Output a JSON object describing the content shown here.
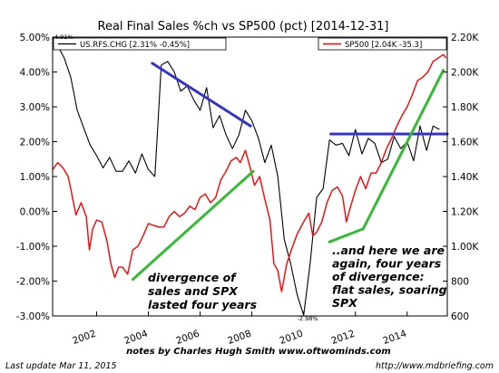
{
  "chart_data": {
    "type": "line",
    "title": "Real Final Sales %ch vs SP500 (pct) [2014-12-31]",
    "xlabel": "",
    "ylabel": "",
    "xlim": [
      2000.3,
      2015.55
    ],
    "x_ticks": [
      "2002",
      "2004",
      "2006",
      "2008",
      "2010",
      "2012",
      "2014"
    ],
    "y_left": {
      "ylim": [
        -3.0,
        5.0
      ],
      "ticks": [
        "-3.00%",
        "-2.00%",
        "-1.00%",
        "0.00%",
        "1.00%",
        "2.00%",
        "3.00%",
        "4.00%",
        "5.00%"
      ]
    },
    "y_right": {
      "ylim": [
        600,
        2200
      ],
      "ticks": [
        "600",
        "800",
        "1.00K",
        "1.20K",
        "1.40K",
        "1.60K",
        "1.80K",
        "2.00K",
        "2.20K"
      ]
    },
    "legend_left": {
      "label": "US.RFS.CHG [2.31% -0.45%]",
      "color": "#000000",
      "placement": "top-left"
    },
    "legend_right": {
      "label": "SP500 [2.04K -35.3]",
      "color": "#ff0000",
      "placement": "top-right"
    },
    "series": [
      {
        "name": "US.RFS.CHG",
        "axis": "left",
        "color": "#000000",
        "x": [
          2000.3,
          2000.5,
          2000.75,
          2001.0,
          2001.25,
          2001.5,
          2001.75,
          2002.0,
          2002.25,
          2002.5,
          2002.75,
          2003.0,
          2003.25,
          2003.5,
          2003.75,
          2004.0,
          2004.25,
          2004.5,
          2004.75,
          2005.0,
          2005.25,
          2005.5,
          2005.75,
          2006.0,
          2006.25,
          2006.5,
          2006.75,
          2007.0,
          2007.25,
          2007.5,
          2007.75,
          2008.0,
          2008.25,
          2008.5,
          2008.75,
          2009.0,
          2009.25,
          2009.5,
          2009.75,
          2010.0,
          2010.25,
          2010.5,
          2010.75,
          2011.0,
          2011.25,
          2011.5,
          2011.75,
          2012.0,
          2012.25,
          2012.5,
          2012.75,
          2013.0,
          2013.25,
          2013.5,
          2013.75,
          2014.0,
          2014.25,
          2014.5,
          2014.75,
          2015.0,
          2015.25
        ],
        "values": [
          5.0,
          4.75,
          4.4,
          3.85,
          2.9,
          2.4,
          1.9,
          1.6,
          1.25,
          1.55,
          1.15,
          1.15,
          1.45,
          1.1,
          1.65,
          1.2,
          1.0,
          4.2,
          4.3,
          4.0,
          3.45,
          3.6,
          3.2,
          2.9,
          3.55,
          2.4,
          2.75,
          2.2,
          1.8,
          2.2,
          2.9,
          2.6,
          2.1,
          1.4,
          1.9,
          1.0,
          -0.8,
          -1.5,
          -2.4,
          -2.98,
          -1.5,
          0.4,
          0.65,
          2.05,
          1.9,
          1.95,
          1.6,
          2.35,
          1.65,
          2.1,
          1.95,
          1.4,
          1.5,
          2.15,
          1.8,
          2.0,
          1.45,
          2.45,
          1.75,
          2.45,
          2.35
        ]
      },
      {
        "name": "SP500",
        "axis": "right",
        "color": "#ff0000",
        "x": [
          2000.3,
          2000.5,
          2000.7,
          2000.9,
          2001.0,
          2001.2,
          2001.4,
          2001.6,
          2001.72,
          2001.85,
          2002.0,
          2002.2,
          2002.4,
          2002.55,
          2002.7,
          2002.85,
          2003.0,
          2003.2,
          2003.4,
          2003.6,
          2003.8,
          2004.0,
          2004.2,
          2004.4,
          2004.6,
          2004.8,
          2005.0,
          2005.2,
          2005.4,
          2005.6,
          2005.8,
          2006.0,
          2006.2,
          2006.4,
          2006.6,
          2006.8,
          2007.0,
          2007.2,
          2007.4,
          2007.55,
          2007.75,
          2007.9,
          2008.1,
          2008.3,
          2008.5,
          2008.7,
          2008.85,
          2009.0,
          2009.15,
          2009.35,
          2009.55,
          2009.75,
          2010.0,
          2010.2,
          2010.35,
          2010.5,
          2010.7,
          2010.9,
          2011.1,
          2011.3,
          2011.5,
          2011.65,
          2011.8,
          2012.0,
          2012.2,
          2012.4,
          2012.6,
          2012.8,
          2013.0,
          2013.2,
          2013.4,
          2013.6,
          2013.8,
          2014.0,
          2014.2,
          2014.4,
          2014.6,
          2014.8,
          2015.0,
          2015.2,
          2015.4,
          2015.5
        ],
        "values": [
          1440,
          1480,
          1450,
          1400,
          1330,
          1180,
          1250,
          1170,
          980,
          1100,
          1150,
          1140,
          1030,
          900,
          820,
          880,
          880,
          840,
          980,
          1000,
          1060,
          1130,
          1120,
          1110,
          1110,
          1170,
          1200,
          1170,
          1190,
          1230,
          1210,
          1280,
          1300,
          1250,
          1280,
          1380,
          1430,
          1490,
          1510,
          1480,
          1550,
          1470,
          1350,
          1400,
          1270,
          1150,
          900,
          860,
          740,
          900,
          990,
          1070,
          1140,
          1190,
          1060,
          1080,
          1140,
          1250,
          1320,
          1340,
          1290,
          1140,
          1220,
          1320,
          1400,
          1330,
          1420,
          1420,
          1480,
          1560,
          1620,
          1690,
          1750,
          1800,
          1870,
          1950,
          1970,
          2000,
          2060,
          2080,
          2100,
          2080
        ]
      }
    ],
    "trend_lines": [
      {
        "color": "#3333cc",
        "axis": "left",
        "x": [
          2004.15,
          2007.95
        ],
        "values": [
          4.25,
          2.45
        ]
      },
      {
        "color": "#3333cc",
        "axis": "left",
        "x": [
          2011.05,
          2015.55
        ],
        "values": [
          2.22,
          2.22
        ]
      },
      {
        "color": "#33bb33",
        "axis": "right",
        "x": [
          2003.4,
          2008.05
        ],
        "values": [
          810,
          1430
        ]
      },
      {
        "color": "#33bb33",
        "axis": "right",
        "x": [
          2011.0,
          2012.3,
          2015.4
        ],
        "values": [
          1025,
          1100,
          2010
        ]
      }
    ],
    "annotations": [
      {
        "lines": [
          "divergence of",
          "sales and SPX",
          "lasted four years"
        ]
      },
      {
        "lines": [
          "..and here we are",
          "again, four years",
          "of divergence:",
          "flat sales, soaring",
          "SPX"
        ]
      }
    ],
    "value_labels": [
      "4.91%",
      "-2.98%"
    ],
    "grid": false
  },
  "credit": "notes by Charles Hugh Smith   www.oftwominds.com",
  "footer_left": "Last update Mar 11, 2015",
  "footer_right": "http://www.mdbriefing.com"
}
